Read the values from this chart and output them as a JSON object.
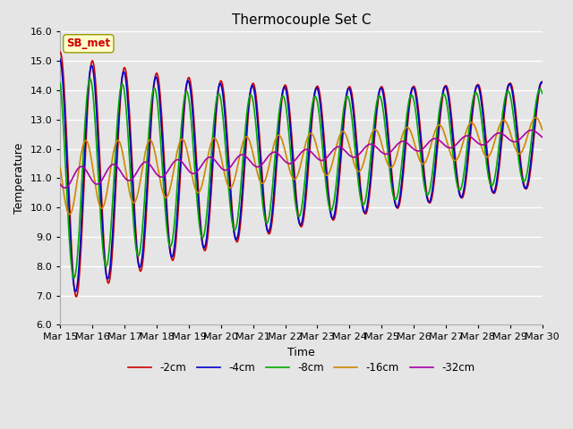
{
  "title": "Thermocouple Set C",
  "xlabel": "Time",
  "ylabel": "Temperature",
  "ylim": [
    6.0,
    16.0
  ],
  "yticks": [
    6.0,
    7.0,
    8.0,
    9.0,
    10.0,
    11.0,
    12.0,
    13.0,
    14.0,
    15.0,
    16.0
  ],
  "xtick_labels": [
    "Mar 15",
    "Mar 16",
    "Mar 17",
    "Mar 18",
    "Mar 19",
    "Mar 20",
    "Mar 21",
    "Mar 22",
    "Mar 23",
    "Mar 24",
    "Mar 25",
    "Mar 26",
    "Mar 27",
    "Mar 28",
    "Mar 29",
    "Mar 30"
  ],
  "annotation_text": "SB_met",
  "series": {
    "-2cm": {
      "color": "#cc0000",
      "lw": 1.2
    },
    "-4cm": {
      "color": "#0000cc",
      "lw": 1.2
    },
    "-8cm": {
      "color": "#00aa00",
      "lw": 1.2
    },
    "-16cm": {
      "color": "#cc8800",
      "lw": 1.2
    },
    "-32cm": {
      "color": "#aa00aa",
      "lw": 1.2
    }
  },
  "plot_bg_color": "#e5e5e5",
  "fig_bg_color": "#e5e5e5",
  "grid_color": "#ffffff",
  "title_fontsize": 11,
  "axis_fontsize": 9,
  "tick_fontsize": 8
}
